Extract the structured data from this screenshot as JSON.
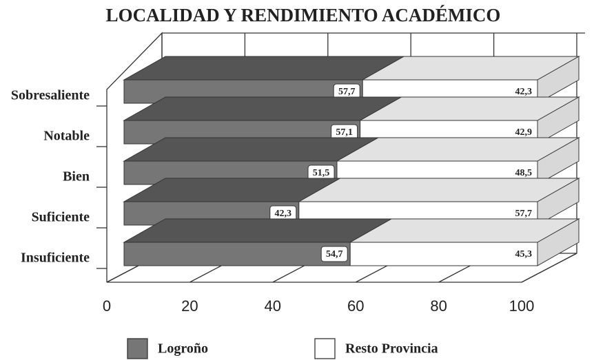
{
  "chart_data": {
    "type": "bar3d_stacked_horizontal",
    "title": "LOCALIDAD Y RENDIMIENTO ACADÉMICO",
    "categories": [
      "Sobresaliente",
      "Notable",
      "Bien",
      "Suficiente",
      "Insuficiente"
    ],
    "series": [
      {
        "name": "Logroño",
        "color": "#767676",
        "values": [
          57.7,
          57.1,
          51.5,
          42.3,
          54.7
        ],
        "value_labels": [
          "57,7",
          "57,1",
          "51,5",
          "42,3",
          "54,7"
        ]
      },
      {
        "name": "Resto Provincia",
        "color": "#ffffff",
        "values": [
          42.3,
          42.9,
          48.5,
          57.7,
          45.3
        ],
        "value_labels": [
          "42,3",
          "42,9",
          "48,5",
          "57,7",
          "45,3"
        ]
      }
    ],
    "xlim": [
      0,
      100
    ],
    "xticks": [
      0,
      20,
      40,
      60,
      80,
      100
    ]
  }
}
